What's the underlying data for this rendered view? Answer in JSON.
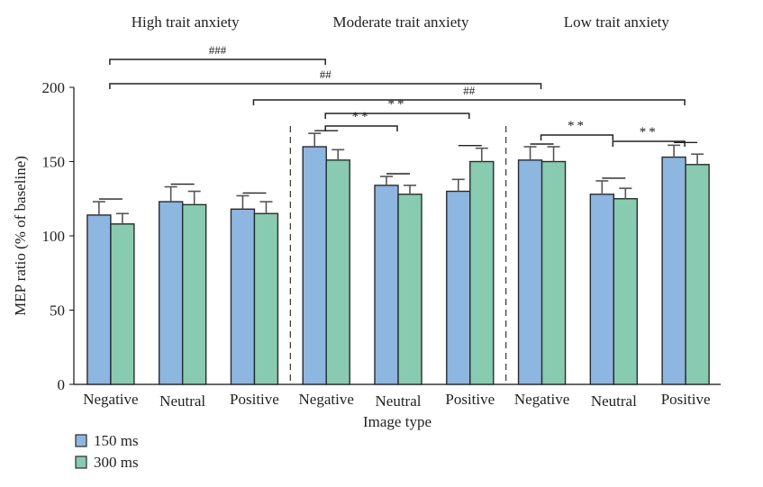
{
  "chart_data": {
    "type": "bar",
    "title": "",
    "xlabel": "Image type",
    "ylabel": "MEP ratio (% of baseline)",
    "ylim": [
      0,
      200
    ],
    "yticks": [
      0,
      50,
      100,
      150,
      200
    ],
    "groups": [
      {
        "label": "High trait anxiety",
        "categories": [
          "Negative",
          "Neutral",
          "Positive"
        ]
      },
      {
        "label": "Moderate trait anxiety",
        "categories": [
          "Negative",
          "Neutral",
          "Positive"
        ]
      },
      {
        "label": "Low trait anxiety",
        "categories": [
          "Negative",
          "Neutral",
          "Positive"
        ]
      }
    ],
    "categories": [
      "Negative",
      "Neutral",
      "Positive",
      "Negative",
      "Neutral",
      "Positive",
      "Negative",
      "Neutral",
      "Positive"
    ],
    "series": [
      {
        "name": "150 ms",
        "color": "#8db6e0",
        "values": [
          114,
          123,
          118,
          160,
          134,
          130,
          151,
          128,
          153
        ],
        "errors": [
          9,
          10,
          9,
          9,
          6,
          8,
          9,
          9,
          8
        ]
      },
      {
        "name": "300 ms",
        "color": "#88cbb0",
        "values": [
          108,
          121,
          115,
          151,
          128,
          150,
          150,
          125,
          148
        ],
        "errors": [
          7,
          9,
          8,
          7,
          6,
          9,
          10,
          7,
          7
        ]
      }
    ],
    "significance": [
      {
        "label": "###",
        "from": 0,
        "to": 3
      },
      {
        "label": "##",
        "from": 0,
        "to": 6
      },
      {
        "label": "##",
        "from": 2,
        "to": 8
      },
      {
        "label": "**",
        "from": 3,
        "to": 5
      },
      {
        "label": "**",
        "from": 3,
        "to": 4
      },
      {
        "label": "**",
        "from": 6,
        "to": 7
      },
      {
        "label": "**",
        "from": 7,
        "to": 8
      }
    ],
    "legend": {
      "position": "bottom-left",
      "entries": [
        "150 ms",
        "300 ms"
      ]
    },
    "grid": false
  }
}
